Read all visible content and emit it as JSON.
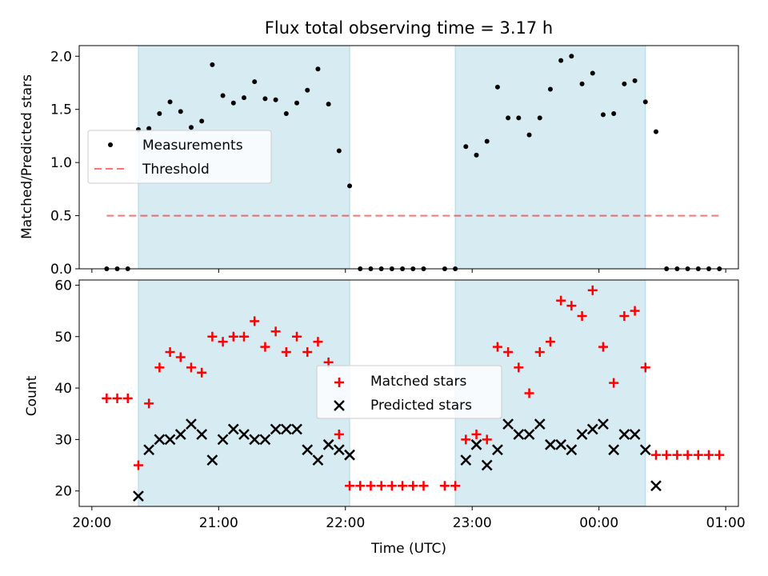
{
  "chart_data": [
    {
      "type": "scatter",
      "title": "Flux total observing time = 3.17 h",
      "xlabel": "",
      "ylabel": "Matched/Predicted stars",
      "xlim": [
        "19:54",
        "01:06"
      ],
      "ylim": [
        0,
        2.1
      ],
      "y_ticks": [
        "0.0",
        "0.5",
        "1.0",
        "1.5",
        "2.0"
      ],
      "shaded_intervals": [
        [
          "20:22",
          "22:02"
        ],
        [
          "22:52",
          "00:22"
        ]
      ],
      "shade_color": "#add8e6",
      "legend_position": "center-left",
      "series": [
        {
          "name": "Measurements",
          "marker": "dot",
          "color": "#000000",
          "points": [
            [
              "20:07",
              0
            ],
            [
              "20:12",
              0
            ],
            [
              "20:17",
              0
            ],
            [
              "20:22",
              1.31
            ],
            [
              "20:27",
              1.32
            ],
            [
              "20:32",
              1.46
            ],
            [
              "20:37",
              1.57
            ],
            [
              "20:42",
              1.48
            ],
            [
              "20:47",
              1.33
            ],
            [
              "20:52",
              1.39
            ],
            [
              "20:57",
              1.92
            ],
            [
              "21:02",
              1.63
            ],
            [
              "21:07",
              1.56
            ],
            [
              "21:12",
              1.61
            ],
            [
              "21:17",
              1.76
            ],
            [
              "21:22",
              1.6
            ],
            [
              "21:27",
              1.59
            ],
            [
              "21:32",
              1.46
            ],
            [
              "21:37",
              1.56
            ],
            [
              "21:42",
              1.68
            ],
            [
              "21:47",
              1.88
            ],
            [
              "21:52",
              1.55
            ],
            [
              "21:57",
              1.11
            ],
            [
              "22:02",
              0.78
            ],
            [
              "22:07",
              0
            ],
            [
              "22:12",
              0
            ],
            [
              "22:17",
              0
            ],
            [
              "22:22",
              0
            ],
            [
              "22:27",
              0
            ],
            [
              "22:32",
              0
            ],
            [
              "22:37",
              0
            ],
            [
              "22:47",
              0
            ],
            [
              "22:52",
              0
            ],
            [
              "22:57",
              1.15
            ],
            [
              "23:02",
              1.07
            ],
            [
              "23:07",
              1.2
            ],
            [
              "23:12",
              1.71
            ],
            [
              "23:17",
              1.42
            ],
            [
              "23:22",
              1.42
            ],
            [
              "23:27",
              1.26
            ],
            [
              "23:32",
              1.42
            ],
            [
              "23:37",
              1.69
            ],
            [
              "23:42",
              1.96
            ],
            [
              "23:47",
              2.0
            ],
            [
              "23:52",
              1.74
            ],
            [
              "23:57",
              1.84
            ],
            [
              "00:02",
              1.45
            ],
            [
              "00:07",
              1.46
            ],
            [
              "00:12",
              1.74
            ],
            [
              "00:17",
              1.77
            ],
            [
              "00:22",
              1.57
            ],
            [
              "00:27",
              1.29
            ],
            [
              "00:32",
              0
            ],
            [
              "00:37",
              0
            ],
            [
              "00:42",
              0
            ],
            [
              "00:47",
              0
            ],
            [
              "00:52",
              0
            ],
            [
              "00:57",
              0
            ]
          ]
        },
        {
          "name": "Threshold",
          "marker": "dashed-line",
          "color": "#ff0000",
          "points": [
            [
              "20:07",
              0.5
            ],
            [
              "00:57",
              0.5
            ]
          ]
        }
      ]
    },
    {
      "type": "scatter",
      "title": "",
      "xlabel": "Time (UTC)",
      "ylabel": "Count",
      "xlim": [
        "19:54",
        "01:06"
      ],
      "ylim": [
        17,
        61
      ],
      "x_ticks": [
        "20:00",
        "21:00",
        "22:00",
        "23:00",
        "00:00",
        "01:00"
      ],
      "y_ticks": [
        "20",
        "30",
        "40",
        "50",
        "60"
      ],
      "shaded_intervals": [
        [
          "20:22",
          "22:02"
        ],
        [
          "22:52",
          "00:22"
        ]
      ],
      "shade_color": "#add8e6",
      "legend_position": "center",
      "series": [
        {
          "name": "Matched stars",
          "marker": "plus",
          "color": "#ff0000",
          "points": [
            [
              "20:07",
              38
            ],
            [
              "20:12",
              38
            ],
            [
              "20:17",
              38
            ],
            [
              "20:22",
              25
            ],
            [
              "20:27",
              37
            ],
            [
              "20:32",
              44
            ],
            [
              "20:37",
              47
            ],
            [
              "20:42",
              46
            ],
            [
              "20:47",
              44
            ],
            [
              "20:52",
              43
            ],
            [
              "20:57",
              50
            ],
            [
              "21:02",
              49
            ],
            [
              "21:07",
              50
            ],
            [
              "21:12",
              50
            ],
            [
              "21:17",
              53
            ],
            [
              "21:22",
              48
            ],
            [
              "21:27",
              51
            ],
            [
              "21:32",
              47
            ],
            [
              "21:37",
              50
            ],
            [
              "21:42",
              47
            ],
            [
              "21:47",
              49
            ],
            [
              "21:52",
              45
            ],
            [
              "21:57",
              31
            ],
            [
              "22:02",
              21
            ],
            [
              "22:07",
              21
            ],
            [
              "22:12",
              21
            ],
            [
              "22:17",
              21
            ],
            [
              "22:22",
              21
            ],
            [
              "22:27",
              21
            ],
            [
              "22:32",
              21
            ],
            [
              "22:37",
              21
            ],
            [
              "22:47",
              21
            ],
            [
              "22:52",
              21
            ],
            [
              "22:57",
              30
            ],
            [
              "23:02",
              31
            ],
            [
              "23:07",
              30
            ],
            [
              "23:12",
              48
            ],
            [
              "23:17",
              47
            ],
            [
              "23:22",
              44
            ],
            [
              "23:27",
              39
            ],
            [
              "23:32",
              47
            ],
            [
              "23:37",
              49
            ],
            [
              "23:42",
              57
            ],
            [
              "23:47",
              56
            ],
            [
              "23:52",
              54
            ],
            [
              "23:57",
              59
            ],
            [
              "00:02",
              48
            ],
            [
              "00:07",
              41
            ],
            [
              "00:12",
              54
            ],
            [
              "00:17",
              55
            ],
            [
              "00:22",
              44
            ],
            [
              "00:27",
              27
            ],
            [
              "00:32",
              27
            ],
            [
              "00:37",
              27
            ],
            [
              "00:42",
              27
            ],
            [
              "00:47",
              27
            ],
            [
              "00:52",
              27
            ],
            [
              "00:57",
              27
            ]
          ]
        },
        {
          "name": "Predicted stars",
          "marker": "x",
          "color": "#000000",
          "points": [
            [
              "20:22",
              19
            ],
            [
              "20:27",
              28
            ],
            [
              "20:32",
              30
            ],
            [
              "20:37",
              30
            ],
            [
              "20:42",
              31
            ],
            [
              "20:47",
              33
            ],
            [
              "20:52",
              31
            ],
            [
              "20:57",
              26
            ],
            [
              "21:02",
              30
            ],
            [
              "21:07",
              32
            ],
            [
              "21:12",
              31
            ],
            [
              "21:17",
              30
            ],
            [
              "21:22",
              30
            ],
            [
              "21:27",
              32
            ],
            [
              "21:32",
              32
            ],
            [
              "21:37",
              32
            ],
            [
              "21:42",
              28
            ],
            [
              "21:47",
              26
            ],
            [
              "21:52",
              29
            ],
            [
              "21:57",
              28
            ],
            [
              "22:02",
              27
            ],
            [
              "22:57",
              26
            ],
            [
              "23:02",
              29
            ],
            [
              "23:07",
              25
            ],
            [
              "23:12",
              28
            ],
            [
              "23:17",
              33
            ],
            [
              "23:22",
              31
            ],
            [
              "23:27",
              31
            ],
            [
              "23:32",
              33
            ],
            [
              "23:37",
              29
            ],
            [
              "23:42",
              29
            ],
            [
              "23:47",
              28
            ],
            [
              "23:52",
              31
            ],
            [
              "23:57",
              32
            ],
            [
              "00:02",
              33
            ],
            [
              "00:07",
              28
            ],
            [
              "00:12",
              31
            ],
            [
              "00:17",
              31
            ],
            [
              "00:22",
              28
            ],
            [
              "00:27",
              21
            ]
          ]
        }
      ]
    }
  ]
}
